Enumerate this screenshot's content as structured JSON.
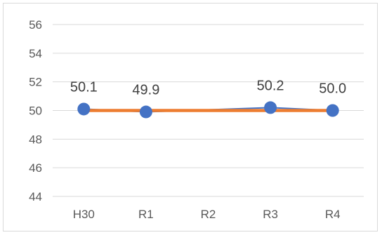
{
  "chart_data": {
    "type": "line",
    "categories": [
      "H30",
      "R1",
      "R2",
      "R3",
      "R4"
    ],
    "series": [
      {
        "values": [
          50.1,
          49.9,
          null,
          50.2,
          50.0
        ],
        "labels": [
          "50.1",
          "49.9",
          "",
          "50.2",
          "50.0"
        ],
        "color": "#4472c4",
        "marker": "circle"
      },
      {
        "values": [
          50.0,
          50.0,
          50.0,
          50.0,
          50.0
        ],
        "color": "#ed7d31"
      }
    ],
    "ylim": [
      44,
      56
    ],
    "yticks": [
      "44",
      "46",
      "48",
      "50",
      "52",
      "54",
      "56"
    ],
    "grid": true,
    "legend": "none"
  },
  "colors": {
    "grid": "#d9d9d9",
    "axis": "#d9d9d9"
  }
}
